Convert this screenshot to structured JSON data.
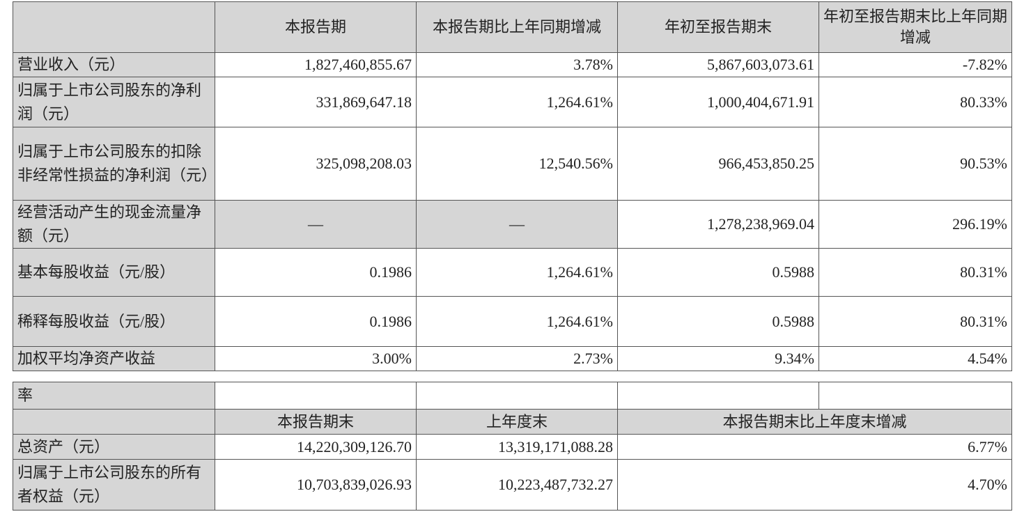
{
  "table1": {
    "headers": [
      "",
      "本报告期",
      "本报告期比上年同期增减",
      "年初至报告期末",
      "年初至报告期末比上年同期增减"
    ],
    "rows": [
      {
        "label": "营业收入（元）",
        "values": [
          "1,827,460,855.67",
          "3.78%",
          "5,867,603,073.61",
          "-7.82%"
        ]
      },
      {
        "label": "归属于上市公司股东的净利润（元）",
        "values": [
          "331,869,647.18",
          "1,264.61%",
          "1,000,404,671.91",
          "80.33%"
        ]
      },
      {
        "label": "归属于上市公司股东的扣除非经常性损益的净利润（元）",
        "values": [
          "325,098,208.03",
          "12,540.56%",
          "966,453,850.25",
          "90.53%"
        ]
      },
      {
        "label": "经营活动产生的现金流量净额（元）",
        "values": [
          "—",
          "—",
          "1,278,238,969.04",
          "296.19%"
        ]
      },
      {
        "label": "基本每股收益（元/股）",
        "values": [
          "0.1986",
          "1,264.61%",
          "0.5988",
          "80.31%"
        ]
      },
      {
        "label": "稀释每股收益（元/股）",
        "values": [
          "0.1986",
          "1,264.61%",
          "0.5988",
          "80.31%"
        ]
      },
      {
        "label": "加权平均净资产收益",
        "values": [
          "3.00%",
          "2.73%",
          "9.34%",
          "4.54%"
        ]
      }
    ]
  },
  "table2": {
    "continuation_label": "率",
    "headers": [
      "",
      "本报告期末",
      "上年度末",
      "本报告期末比上年度末增减"
    ],
    "rows": [
      {
        "label": "总资产（元）",
        "values": [
          "14,220,309,126.70",
          "13,319,171,088.28",
          "6.77%"
        ]
      },
      {
        "label": "归属于上市公司股东的所有者权益（元）",
        "values": [
          "10,703,839,026.93",
          "10,223,487,732.27",
          "4.70%"
        ]
      }
    ]
  },
  "colors": {
    "header_bg": "#d6d6d6",
    "border": "#555555"
  }
}
